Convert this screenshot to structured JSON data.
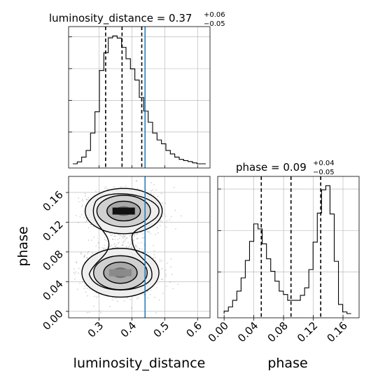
{
  "colors": {
    "hist": "#000000",
    "truth": "#1f77b4",
    "grid": "#b0b0b0",
    "scatter": "#7f7f7f",
    "fill_light": "#dcdcdc",
    "fill_dark": "#111111"
  },
  "titles": {
    "ld": {
      "main": "luminosity_distance = 0.37",
      "sup": "+0.06",
      "sub": "−0.05"
    },
    "phase": {
      "main": "phase = 0.09",
      "sup": "+0.04",
      "sub": "−0.05"
    }
  },
  "axis_labels": {
    "ld": "luminosity_distance",
    "phase_x": "phase",
    "phase_y": "phase"
  },
  "chart_data": [
    {
      "type": "histogram",
      "parameter": "luminosity_distance",
      "xlim": [
        0.22,
        0.625
      ],
      "xticks": [
        0.3,
        0.4,
        0.5,
        0.6
      ],
      "bin_edges": [
        0.22,
        0.2335,
        0.247,
        0.2605,
        0.274,
        0.2875,
        0.301,
        0.3145,
        0.328,
        0.3415,
        0.355,
        0.3685,
        0.382,
        0.3955,
        0.409,
        0.4225,
        0.436,
        0.4495,
        0.463,
        0.4765,
        0.49,
        0.5035,
        0.517,
        0.5305,
        0.544,
        0.5575,
        0.571,
        0.5845,
        0.598,
        0.6115,
        0.625
      ],
      "counts": [
        0.0,
        0.6,
        2.1,
        4.2,
        9.7,
        16.4,
        29.4,
        35.0,
        39.7,
        40.3,
        39.6,
        36.7,
        33.1,
        29.9,
        26.4,
        20.9,
        16.6,
        13.1,
        9.7,
        7.5,
        6.3,
        4.2,
        3.1,
        2.1,
        1.4,
        1.0,
        0.7,
        0.3,
        0.0,
        0.0
      ],
      "quantiles": [
        0.32,
        0.37,
        0.43
      ],
      "truth": 0.44
    },
    {
      "type": "scatter_contour",
      "x_parameter": "luminosity_distance",
      "y_parameter": "phase",
      "xlim": [
        0.22,
        0.625
      ],
      "ylim": [
        -0.003,
        0.176
      ],
      "xticks": [
        0.3,
        0.4,
        0.5,
        0.6
      ],
      "yticks": [
        0.0,
        0.04,
        0.08,
        0.12,
        0.16
      ],
      "truth_x": 0.44,
      "modes": [
        {
          "center": [
            0.375,
            0.135
          ],
          "sx": 0.05,
          "sy": 0.013
        },
        {
          "center": [
            0.365,
            0.052
          ],
          "sx": 0.05,
          "sy": 0.014
        }
      ]
    },
    {
      "type": "histogram",
      "parameter": "phase",
      "xlim": [
        -0.003,
        0.176
      ],
      "xticks": [
        0.0,
        0.04,
        0.08,
        0.12,
        0.16
      ],
      "bin_edges": [
        0.0,
        0.0057,
        0.0114,
        0.0171,
        0.0228,
        0.0285,
        0.0342,
        0.0399,
        0.0456,
        0.0513,
        0.057,
        0.0627,
        0.0684,
        0.0741,
        0.0798,
        0.0855,
        0.0912,
        0.0969,
        0.1026,
        0.1083,
        0.114,
        0.1197,
        0.1254,
        0.1311,
        0.1368,
        0.1425,
        0.1482,
        0.1539,
        0.1596,
        0.1653,
        0.171
      ],
      "counts": [
        0.3,
        0.8,
        1.6,
        2.7,
        4.3,
        6.4,
        8.7,
        10.8,
        10.2,
        8.4,
        6.6,
        5.1,
        3.9,
        2.7,
        2.3,
        1.6,
        1.6,
        1.6,
        2.2,
        3.1,
        5.3,
        8.6,
        12.1,
        14.9,
        15.4,
        12.0,
        6.3,
        1.1,
        0.2,
        0.0
      ],
      "quantiles": [
        0.05,
        0.09,
        0.13
      ]
    }
  ]
}
